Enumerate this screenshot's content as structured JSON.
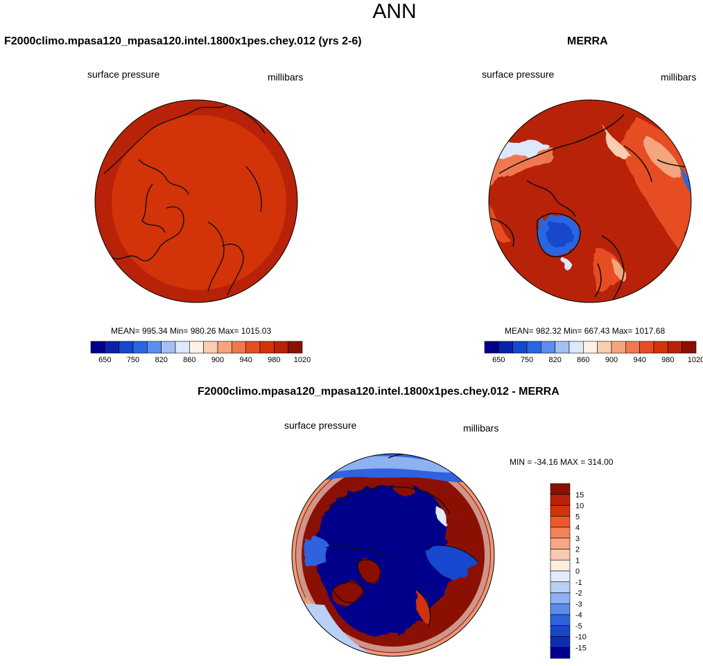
{
  "title": "ANN",
  "panels": {
    "model": {
      "title": "F2000climo.mpasa120_mpasa120.intel.1800x1pes.chey.012 (yrs 2-6)",
      "left_label": "surface pressure",
      "right_label": "millibars",
      "stats": "MEAN= 995.34  Min= 980.26  Max= 1015.03"
    },
    "obs": {
      "title": "MERRA",
      "left_label": "surface pressure",
      "right_label": "millibars",
      "stats": "MEAN= 982.32  Min= 667.43  Max= 1017.68"
    },
    "diff": {
      "title": "F2000climo.mpasa120_mpasa120.intel.1800x1pes.chey.012 - MERRA",
      "left_label": "surface pressure",
      "right_label": "millibars",
      "stats": "MIN = -34.16 MAX = 314.00"
    }
  },
  "colorbar_abs": {
    "colors": [
      "#00008b",
      "#0a22a8",
      "#1546cc",
      "#2a66e0",
      "#5b8ef0",
      "#a3c0f5",
      "#dde9fb",
      "#fff1e6",
      "#f9cdb0",
      "#f5a57e",
      "#f0784f",
      "#e64d24",
      "#d23308",
      "#b82208",
      "#8b1004"
    ],
    "tick_labels": [
      "650",
      "750",
      "820",
      "860",
      "900",
      "940",
      "980",
      "1020"
    ]
  },
  "colorbar_diff": {
    "colors": [
      "#8b1004",
      "#b82208",
      "#d23308",
      "#ed5a2e",
      "#f2835a",
      "#f6a785",
      "#f9c9b0",
      "#fdeee2",
      "#e1ebfb",
      "#b9d0f7",
      "#8eb1f2",
      "#5d8bea",
      "#2f62df",
      "#1846cf",
      "#0d2db5",
      "#00008b"
    ],
    "tick_labels": [
      "15",
      "10",
      "5",
      "4",
      "3",
      "2",
      "1",
      "0",
      "-1",
      "-2",
      "-3",
      "-4",
      "-5",
      "-10",
      "-15"
    ]
  }
}
